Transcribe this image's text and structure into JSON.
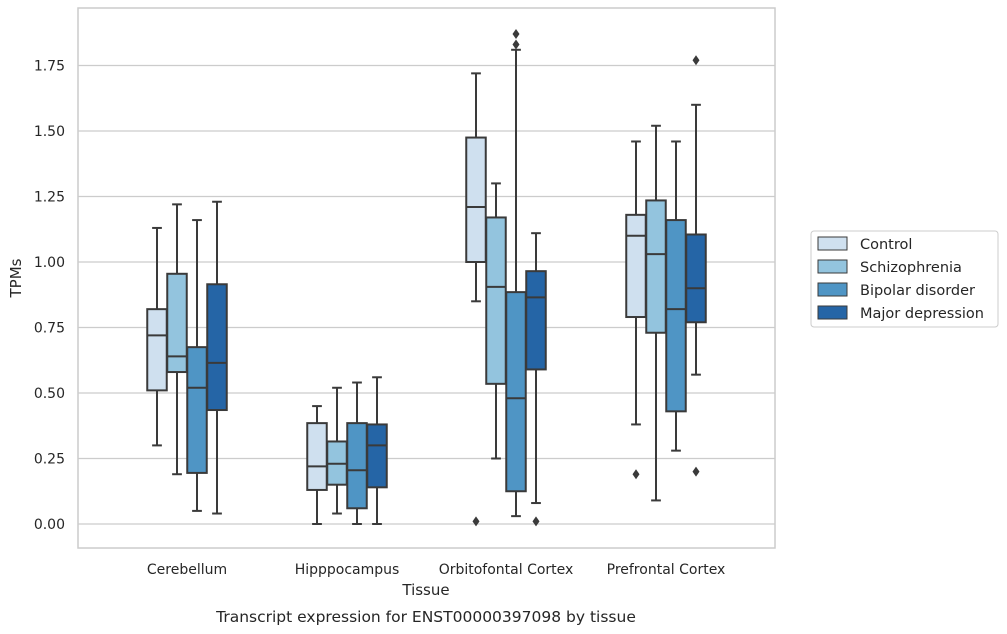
{
  "caption": "Transcript expression for ENST00000397098 by tissue",
  "chart_data": {
    "type": "boxplot",
    "title": "",
    "xlabel": "Tissue",
    "ylabel": "TPMs",
    "ylim": [
      -0.09,
      1.97
    ],
    "yticks": [
      "0.00",
      "0.25",
      "0.50",
      "0.75",
      "1.00",
      "1.25",
      "1.50",
      "1.75"
    ],
    "ytick_values": [
      0,
      0.25,
      0.5,
      0.75,
      1.0,
      1.25,
      1.5,
      1.75
    ],
    "grid": true,
    "legend_placement": "right",
    "categories": [
      "Cerebellum",
      "Hipppocampus",
      "Orbitofontal Cortex",
      "Prefrontal Cortex"
    ],
    "series": [
      {
        "name": "Control",
        "color": "#cfe0ef",
        "boxes": [
          {
            "whislo": 0.3,
            "q1": 0.51,
            "med": 0.72,
            "q3": 0.82,
            "whishi": 1.13,
            "fliers": []
          },
          {
            "whislo": 0.0,
            "q1": 0.13,
            "med": 0.22,
            "q3": 0.385,
            "whishi": 0.45,
            "fliers": []
          },
          {
            "whislo": 0.85,
            "q1": 1.0,
            "med": 1.21,
            "q3": 1.475,
            "whishi": 1.72,
            "fliers": [
              0.01
            ]
          },
          {
            "whislo": 0.38,
            "q1": 0.79,
            "med": 1.1,
            "q3": 1.18,
            "whishi": 1.46,
            "fliers": [
              0.19
            ]
          }
        ]
      },
      {
        "name": "Schizophrenia",
        "color": "#93c4de",
        "boxes": [
          {
            "whislo": 0.19,
            "q1": 0.58,
            "med": 0.64,
            "q3": 0.955,
            "whishi": 1.22,
            "fliers": []
          },
          {
            "whislo": 0.04,
            "q1": 0.15,
            "med": 0.23,
            "q3": 0.315,
            "whishi": 0.52,
            "fliers": []
          },
          {
            "whislo": 0.25,
            "q1": 0.535,
            "med": 0.905,
            "q3": 1.17,
            "whishi": 1.3,
            "fliers": []
          },
          {
            "whislo": 0.09,
            "q1": 0.73,
            "med": 1.03,
            "q3": 1.235,
            "whishi": 1.52,
            "fliers": []
          }
        ]
      },
      {
        "name": "Bipolar disorder",
        "color": "#4f95c5",
        "boxes": [
          {
            "whislo": 0.05,
            "q1": 0.195,
            "med": 0.52,
            "q3": 0.675,
            "whishi": 1.16,
            "fliers": []
          },
          {
            "whislo": 0.0,
            "q1": 0.06,
            "med": 0.205,
            "q3": 0.385,
            "whishi": 0.54,
            "fliers": []
          },
          {
            "whislo": 0.03,
            "q1": 0.125,
            "med": 0.48,
            "q3": 0.885,
            "whishi": 1.81,
            "fliers": [
              1.83,
              1.87
            ]
          },
          {
            "whislo": 0.28,
            "q1": 0.43,
            "med": 0.82,
            "q3": 1.16,
            "whishi": 1.46,
            "fliers": []
          }
        ]
      },
      {
        "name": "Major depression",
        "color": "#2565a6",
        "boxes": [
          {
            "whislo": 0.04,
            "q1": 0.435,
            "med": 0.615,
            "q3": 0.915,
            "whishi": 1.23,
            "fliers": []
          },
          {
            "whislo": 0.0,
            "q1": 0.14,
            "med": 0.3,
            "q3": 0.38,
            "whishi": 0.56,
            "fliers": []
          },
          {
            "whislo": 0.08,
            "q1": 0.59,
            "med": 0.865,
            "q3": 0.965,
            "whishi": 1.11,
            "fliers": [
              0.01
            ]
          },
          {
            "whislo": 0.57,
            "q1": 0.77,
            "med": 0.9,
            "q3": 1.105,
            "whishi": 1.6,
            "fliers": [
              0.2,
              1.77
            ]
          }
        ]
      }
    ]
  }
}
